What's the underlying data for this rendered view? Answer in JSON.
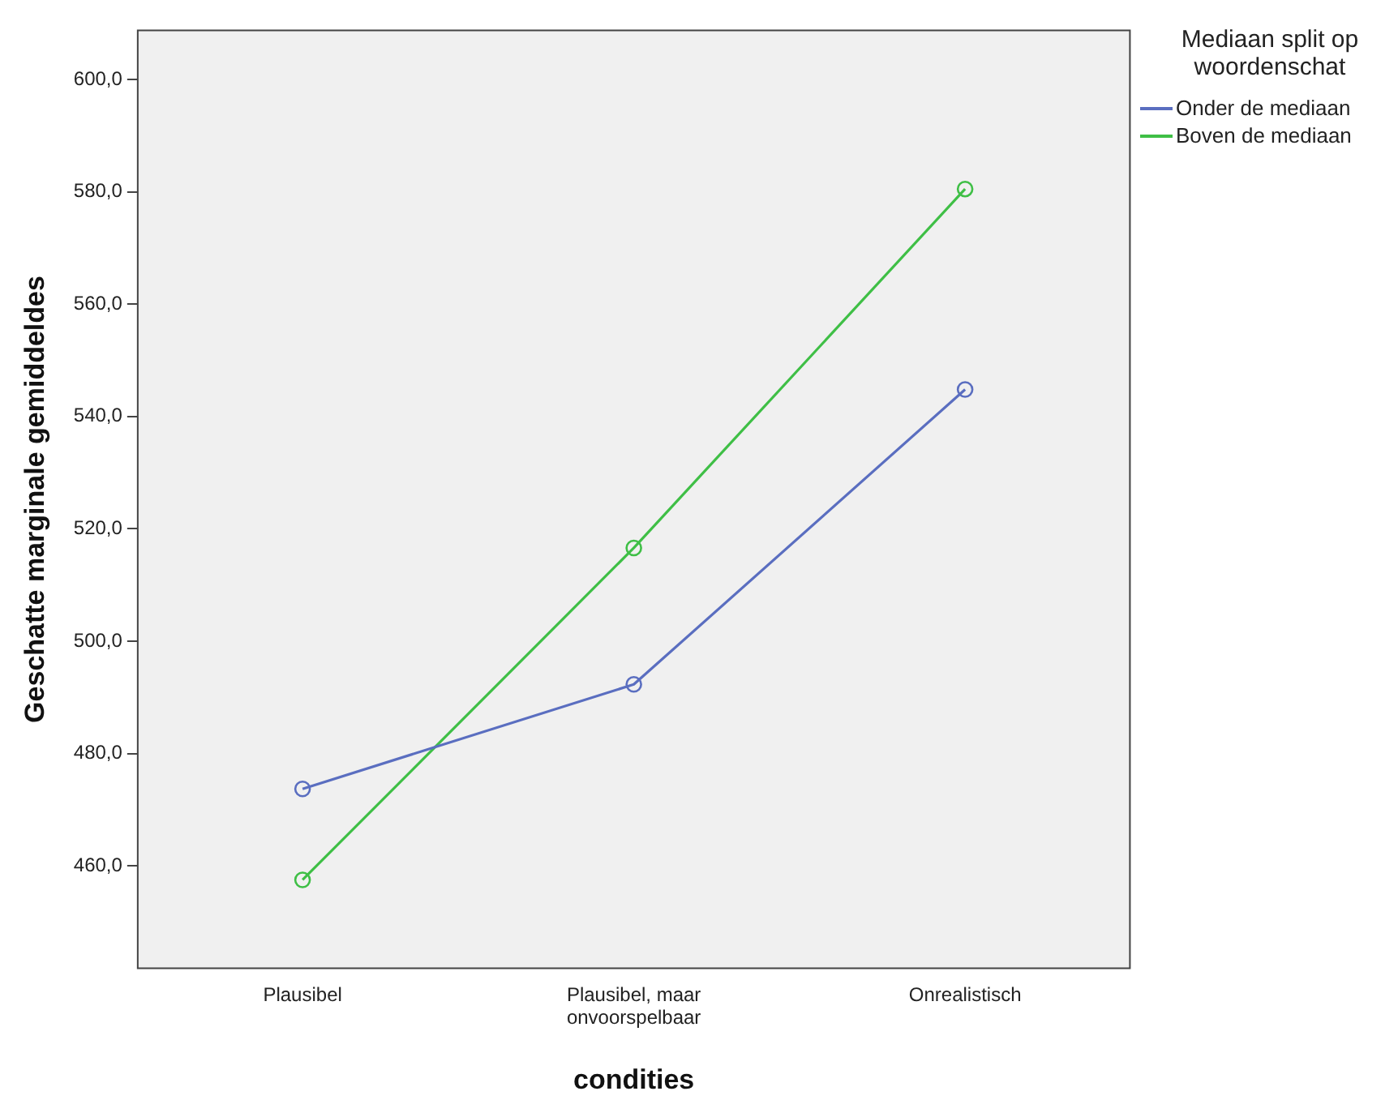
{
  "chart_data": {
    "type": "line",
    "xlabel": "condities",
    "ylabel": "Geschatte marginale gemiddeldes",
    "legend_title": "Mediaan split op woordenschat",
    "categories": [
      "Plausibel",
      "Plausibel, maar\nonvoorspelbaar",
      "Onrealistisch"
    ],
    "series": [
      {
        "name": "Onder de mediaan",
        "color": "#5a6ec0",
        "values": [
          473.7,
          492.3,
          544.8
        ]
      },
      {
        "name": "Boven de mediaan",
        "color": "#3fbf46",
        "values": [
          457.5,
          516.6,
          580.5
        ]
      }
    ],
    "ylim": [
      441.6,
      608.9
    ],
    "yticks": [
      {
        "value": 460,
        "label": "460,0"
      },
      {
        "value": 480,
        "label": "480,0"
      },
      {
        "value": 500,
        "label": "500,0"
      },
      {
        "value": 520,
        "label": "520,0"
      },
      {
        "value": 540,
        "label": "540,0"
      },
      {
        "value": 560,
        "label": "560,0"
      },
      {
        "value": 580,
        "label": "580,0"
      },
      {
        "value": 600,
        "label": "600,0"
      }
    ],
    "grid": false,
    "legend": "top right",
    "marker": "circle",
    "line_style": "solid"
  }
}
